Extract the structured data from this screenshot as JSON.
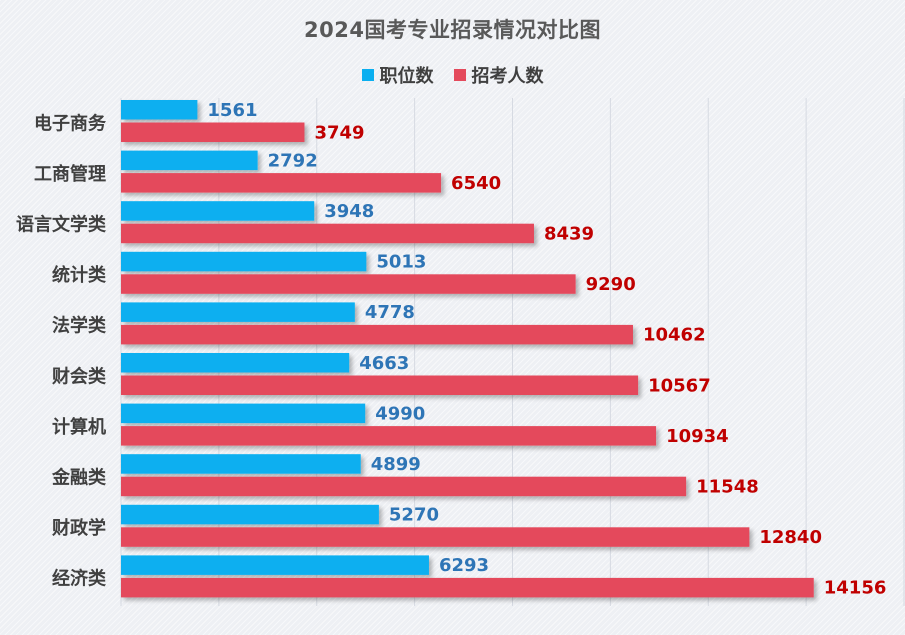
{
  "colors": {
    "positions": "#0aaff0",
    "applicants": "#e44a5c",
    "positions_label": "#2e75b6",
    "applicants_label": "#c00000",
    "gridline": "#d6dae2",
    "category_label": "#404040"
  },
  "chart_data": {
    "type": "bar",
    "orientation": "horizontal",
    "title": "2024国考专业招录情况对比图",
    "categories": [
      "电子商务",
      "工商管理",
      "语言文学类",
      "统计类",
      "法学类",
      "财会类",
      "计算机",
      "金融类",
      "财政学",
      "经济类"
    ],
    "series": [
      {
        "name": "职位数",
        "values": [
          1561,
          2792,
          3948,
          5013,
          4778,
          4663,
          4990,
          4899,
          5270,
          6293
        ]
      },
      {
        "name": "招考人数",
        "values": [
          3749,
          6540,
          8439,
          9290,
          10462,
          10567,
          10934,
          11548,
          12840,
          14156
        ]
      }
    ],
    "xlim": [
      0,
      16000
    ],
    "gridlines": true,
    "data_labels": true,
    "legend_position": "top"
  }
}
